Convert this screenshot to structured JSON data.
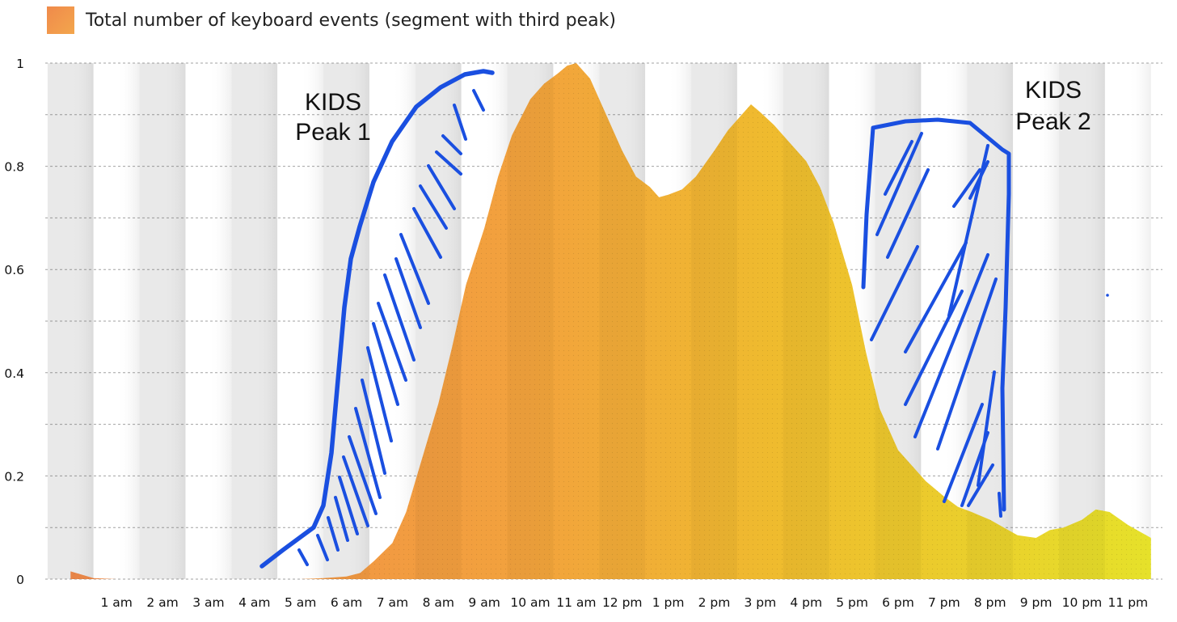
{
  "chart_data": {
    "type": "area",
    "title": "",
    "xlabel": "",
    "ylabel": "",
    "ylim": [
      0,
      1
    ],
    "yticks": [
      0,
      0.2,
      0.4,
      0.6,
      0.8,
      1
    ],
    "ytick_labels": [
      "0",
      "0.2",
      "0.4",
      "0.6",
      "0.8",
      "1"
    ],
    "categories": [
      "1 am",
      "2 am",
      "3 am",
      "4 am",
      "5 am",
      "6 am",
      "7 am",
      "8 am",
      "9 am",
      "10 am",
      "11 am",
      "12 pm",
      "1 pm",
      "2 pm",
      "3 pm",
      "4 pm",
      "5 pm",
      "6 pm",
      "7 pm",
      "8 pm",
      "9 pm",
      "10 pm",
      "11 pm"
    ],
    "grid": true,
    "legend_position": "top-left",
    "series": [
      {
        "name": "Total number of keyboard events (segment with third peak)",
        "x": [
          0,
          0.5,
          1,
          2,
          3,
          4,
          5,
          5.5,
          6,
          6.3,
          6.6,
          7,
          7.3,
          7.6,
          8,
          8.3,
          8.6,
          9,
          9.3,
          9.6,
          10,
          10.3,
          10.6,
          10.8,
          11,
          11.3,
          11.6,
          12,
          12.3,
          12.6,
          12.8,
          13,
          13.3,
          13.6,
          14,
          14.3,
          14.6,
          14.8,
          15,
          15.3,
          15.6,
          16,
          16.3,
          16.6,
          17,
          17.3,
          17.6,
          18,
          18.3,
          18.6,
          19,
          19.3,
          19.6,
          20,
          20.3,
          20.6,
          21,
          21.3,
          21.6,
          22,
          22.3,
          22.6,
          23,
          23.5
        ],
        "y": [
          0.015,
          0.002,
          0,
          0,
          0,
          0,
          0,
          0.002,
          0.005,
          0.012,
          0.035,
          0.07,
          0.13,
          0.22,
          0.34,
          0.45,
          0.57,
          0.68,
          0.78,
          0.86,
          0.93,
          0.96,
          0.98,
          0.995,
          1.0,
          0.97,
          0.91,
          0.83,
          0.78,
          0.76,
          0.74,
          0.745,
          0.755,
          0.78,
          0.83,
          0.87,
          0.9,
          0.92,
          0.905,
          0.88,
          0.85,
          0.81,
          0.76,
          0.69,
          0.57,
          0.44,
          0.33,
          0.25,
          0.22,
          0.19,
          0.16,
          0.14,
          0.13,
          0.115,
          0.1,
          0.085,
          0.08,
          0.095,
          0.1,
          0.115,
          0.135,
          0.13,
          0.105,
          0.08
        ]
      }
    ],
    "annotations": [
      {
        "lines": [
          "KIDS",
          "Peak 1"
        ]
      },
      {
        "lines": [
          "KIDS",
          "Peak 2"
        ]
      }
    ],
    "colors": {
      "area_start": "#f08a4b",
      "area_mid": "#f2a23d",
      "area_peak2": "#efbb2e",
      "area_end": "#e6e12a",
      "annotation_ink": "#1a4fe0",
      "band_light": "#ffffff",
      "band_dark": "#e9e9e9"
    }
  }
}
